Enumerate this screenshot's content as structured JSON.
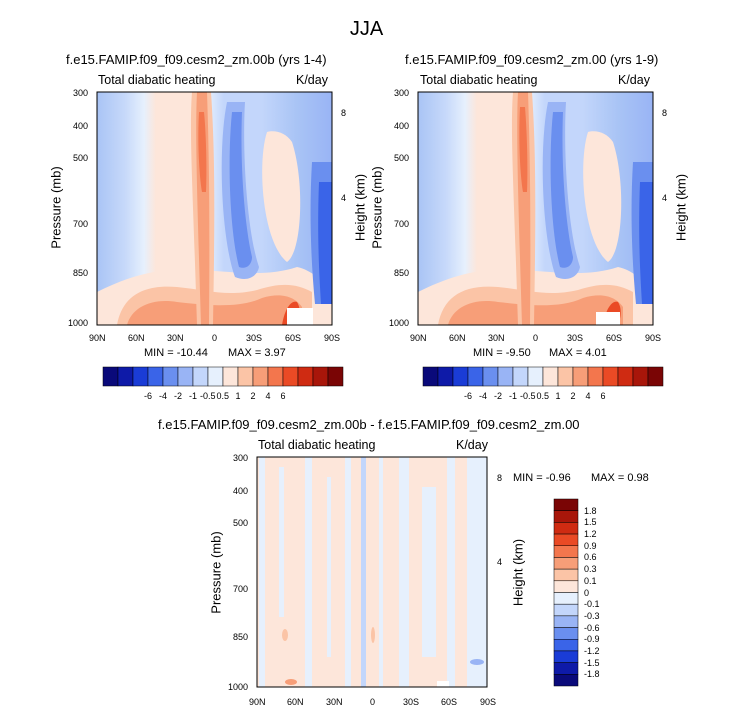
{
  "figure": {
    "title": "JJA"
  },
  "chart_data": [
    {
      "type": "heatmap",
      "title": "f.e15.FAMIP.f09_f09.cesm2_zm.00b (yrs 1-4)",
      "left_label": "Total diabatic heating",
      "units": "K/day",
      "xlabel": "",
      "ylabel": "Pressure (mb)",
      "y2label": "Height (km)",
      "x_ticks": [
        "90N",
        "60N",
        "30N",
        "0",
        "30S",
        "60S",
        "90S"
      ],
      "y_ticks": [
        "300",
        "400",
        "500",
        "700",
        "850",
        "1000"
      ],
      "y2_ticks": [
        "8",
        "4"
      ],
      "min_label": "MIN = -10.44",
      "max_label": "MAX =  3.97",
      "min": -10.44,
      "max": 3.97
    },
    {
      "type": "heatmap",
      "title": "f.e15.FAMIP.f09_f09.cesm2_zm.00 (yrs 1-9)",
      "left_label": "Total diabatic heating",
      "units": "K/day",
      "xlabel": "",
      "ylabel": "Pressure (mb)",
      "y2label": "Height (km)",
      "x_ticks": [
        "90N",
        "60N",
        "30N",
        "0",
        "30S",
        "60S",
        "90S"
      ],
      "y_ticks": [
        "300",
        "400",
        "500",
        "700",
        "850",
        "1000"
      ],
      "y2_ticks": [
        "8",
        "4"
      ],
      "min_label": "MIN = -9.50",
      "max_label": "MAX =  4.01",
      "min": -9.5,
      "max": 4.01
    },
    {
      "type": "heatmap",
      "title": "f.e15.FAMIP.f09_f09.cesm2_zm.00b - f.e15.FAMIP.f09_f09.cesm2_zm.00",
      "left_label": "Total diabatic heating",
      "units": "K/day",
      "xlabel": "",
      "ylabel": "Pressure (mb)",
      "y2label": "Height (km)",
      "x_ticks": [
        "90N",
        "60N",
        "30N",
        "0",
        "30S",
        "60S",
        "90S"
      ],
      "y_ticks": [
        "300",
        "400",
        "500",
        "700",
        "850",
        "1000"
      ],
      "y2_ticks": [
        "8",
        "4"
      ],
      "min_label": "MIN =  -0.96",
      "max_label": "MAX =  0.98",
      "min": -0.96,
      "max": 0.98
    }
  ],
  "colorbar_top": {
    "labels": [
      "-6",
      "-4",
      "-2",
      "-1",
      "-0.5",
      "0.5",
      "1",
      "2",
      "4",
      "6"
    ],
    "colors": [
      "#0a0a7a",
      "#0e1aa8",
      "#1a3cd6",
      "#3a64e8",
      "#6a8fef",
      "#99b4f5",
      "#c3d6fb",
      "#e6f0fd",
      "#fde6da",
      "#fbc4a6",
      "#f79e78",
      "#f3764d",
      "#ea4a25",
      "#cf2b12",
      "#a8160a",
      "#7a0505"
    ]
  },
  "colorbar_diff": {
    "labels": [
      "1.8",
      "1.5",
      "1.2",
      "0.9",
      "0.6",
      "0.3",
      "0.1",
      "0",
      "-0.1",
      "-0.3",
      "-0.6",
      "-0.9",
      "-1.2",
      "-1.5",
      "-1.8"
    ],
    "colors": [
      "#7a0505",
      "#a8160a",
      "#cf2b12",
      "#ea4a25",
      "#f3764d",
      "#f79e78",
      "#fbc4a6",
      "#fde6da",
      "#e6f0fd",
      "#c3d6fb",
      "#99b4f5",
      "#6a8fef",
      "#3a64e8",
      "#1a3cd6",
      "#0e1aa8",
      "#0a0a7a"
    ]
  }
}
